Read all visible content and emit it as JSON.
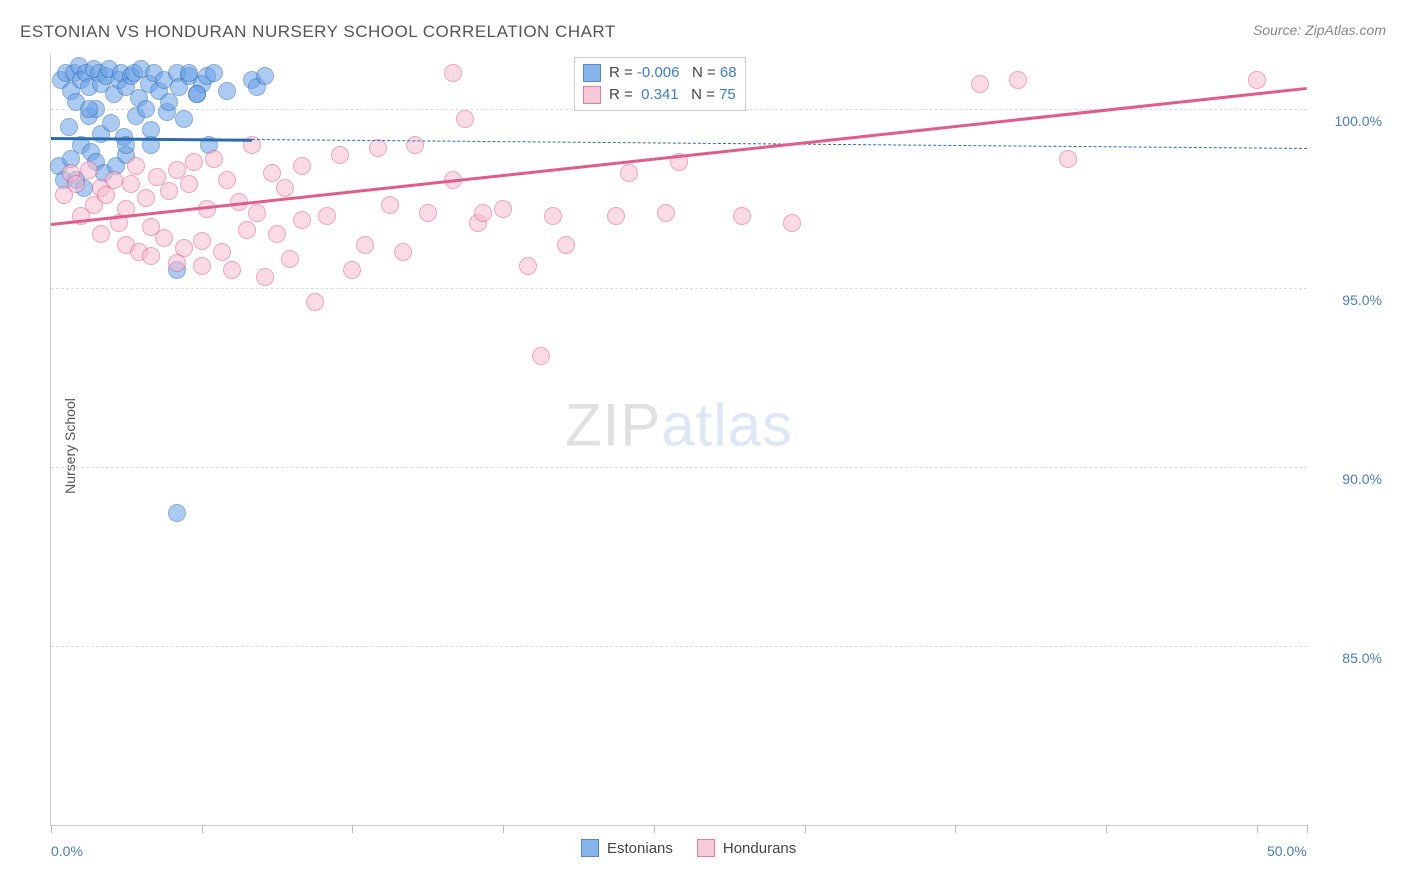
{
  "title": "ESTONIAN VS HONDURAN NURSERY SCHOOL CORRELATION CHART",
  "source": "Source: ZipAtlas.com",
  "ylabel": "Nursery School",
  "watermark": {
    "zip": "ZIP",
    "atlas": "atlas"
  },
  "chart": {
    "type": "scatter",
    "background_color": "#ffffff",
    "grid_color": "#dddddd",
    "axis_color": "#cccccc",
    "label_color": "#4a7ebb",
    "xlim": [
      0,
      50
    ],
    "ylim": [
      80,
      101.5
    ],
    "xticks": [
      0,
      6,
      12,
      18,
      24,
      30,
      36,
      42,
      48,
      50
    ],
    "xtick_labels": {
      "0": "0.0%",
      "50": "50.0%"
    },
    "yticks": [
      85,
      90,
      95,
      100
    ],
    "ytick_labels": {
      "85": "85.0%",
      "90": "90.0%",
      "95": "95.0%",
      "100": "100.0%"
    },
    "point_radius": 9,
    "point_opacity": 0.55,
    "series": [
      {
        "name": "Estonians",
        "fill_color": "#6aa1e8",
        "stroke_color": "#2b6cb0",
        "r": "-0.006",
        "n": "68",
        "trend": {
          "x1": 0,
          "y1": 99.2,
          "x2": 8,
          "y2": 99.15,
          "solid_color": "#2b6cb0",
          "width": 2.5
        },
        "dash_trend": {
          "x1": 8,
          "y1": 99.15,
          "x2": 50,
          "y2": 98.9,
          "dash_color": "#2b6cb0"
        },
        "points": [
          [
            0.3,
            98.4
          ],
          [
            0.4,
            100.8
          ],
          [
            0.5,
            98.0
          ],
          [
            0.6,
            101.0
          ],
          [
            0.7,
            99.5
          ],
          [
            0.8,
            100.5
          ],
          [
            0.8,
            98.6
          ],
          [
            0.9,
            101.0
          ],
          [
            1.0,
            100.2
          ],
          [
            1.0,
            98.0
          ],
          [
            1.1,
            101.2
          ],
          [
            1.2,
            99.0
          ],
          [
            1.2,
            100.8
          ],
          [
            1.3,
            97.8
          ],
          [
            1.4,
            101.0
          ],
          [
            1.5,
            99.8
          ],
          [
            1.5,
            100.6
          ],
          [
            1.6,
            98.8
          ],
          [
            1.7,
            101.1
          ],
          [
            1.8,
            100.0
          ],
          [
            1.8,
            98.5
          ],
          [
            1.9,
            101.0
          ],
          [
            2.0,
            99.3
          ],
          [
            2.0,
            100.7
          ],
          [
            2.1,
            98.2
          ],
          [
            2.2,
            100.9
          ],
          [
            2.3,
            101.1
          ],
          [
            2.4,
            99.6
          ],
          [
            2.5,
            100.4
          ],
          [
            2.6,
            98.4
          ],
          [
            2.7,
            100.8
          ],
          [
            2.8,
            101.0
          ],
          [
            2.9,
            99.2
          ],
          [
            3.0,
            100.6
          ],
          [
            3.0,
            98.7
          ],
          [
            3.2,
            100.9
          ],
          [
            3.3,
            101.0
          ],
          [
            3.4,
            99.8
          ],
          [
            3.5,
            100.3
          ],
          [
            3.6,
            101.1
          ],
          [
            3.8,
            100.0
          ],
          [
            3.9,
            100.7
          ],
          [
            4.0,
            99.4
          ],
          [
            4.1,
            101.0
          ],
          [
            4.3,
            100.5
          ],
          [
            4.5,
            100.8
          ],
          [
            4.6,
            99.9
          ],
          [
            4.7,
            100.2
          ],
          [
            5.0,
            101.0
          ],
          [
            5.1,
            100.6
          ],
          [
            5.3,
            99.7
          ],
          [
            5.5,
            100.9
          ],
          [
            5.5,
            101.0
          ],
          [
            5.8,
            100.4
          ],
          [
            6.0,
            100.7
          ],
          [
            6.2,
            100.9
          ],
          [
            6.3,
            99.0
          ],
          [
            6.5,
            101.0
          ],
          [
            7.0,
            100.5
          ],
          [
            8.0,
            100.8
          ],
          [
            8.2,
            100.6
          ],
          [
            8.5,
            100.9
          ],
          [
            5.0,
            95.5
          ],
          [
            4.0,
            99.0
          ],
          [
            5.0,
            88.7
          ],
          [
            5.8,
            100.4
          ],
          [
            3.0,
            99.0
          ],
          [
            1.5,
            100.0
          ]
        ]
      },
      {
        "name": "Hondurans",
        "fill_color": "#f7bcd0",
        "stroke_color": "#e05c8a",
        "r": "0.341",
        "n": "75",
        "trend": {
          "x1": 0,
          "y1": 96.8,
          "x2": 50,
          "y2": 100.6,
          "solid_color": "#e05c8a",
          "width": 2.5
        },
        "points": [
          [
            0.5,
            97.6
          ],
          [
            0.8,
            98.2
          ],
          [
            1.0,
            97.9
          ],
          [
            1.2,
            97.0
          ],
          [
            1.5,
            98.3
          ],
          [
            1.7,
            97.3
          ],
          [
            2.0,
            97.8
          ],
          [
            2.0,
            96.5
          ],
          [
            2.2,
            97.6
          ],
          [
            2.5,
            98.0
          ],
          [
            2.7,
            96.8
          ],
          [
            3.0,
            97.2
          ],
          [
            3.0,
            96.2
          ],
          [
            3.2,
            97.9
          ],
          [
            3.4,
            98.4
          ],
          [
            3.5,
            96.0
          ],
          [
            3.8,
            97.5
          ],
          [
            4.0,
            96.7
          ],
          [
            4.0,
            95.9
          ],
          [
            4.2,
            98.1
          ],
          [
            4.5,
            96.4
          ],
          [
            4.7,
            97.7
          ],
          [
            5.0,
            98.3
          ],
          [
            5.0,
            95.7
          ],
          [
            5.3,
            96.1
          ],
          [
            5.5,
            97.9
          ],
          [
            5.7,
            98.5
          ],
          [
            6.0,
            96.3
          ],
          [
            6.0,
            95.6
          ],
          [
            6.2,
            97.2
          ],
          [
            6.5,
            98.6
          ],
          [
            6.8,
            96.0
          ],
          [
            7.0,
            98.0
          ],
          [
            7.2,
            95.5
          ],
          [
            7.5,
            97.4
          ],
          [
            7.8,
            96.6
          ],
          [
            8.0,
            99.0
          ],
          [
            8.2,
            97.1
          ],
          [
            8.5,
            95.3
          ],
          [
            8.8,
            98.2
          ],
          [
            9.0,
            96.5
          ],
          [
            9.3,
            97.8
          ],
          [
            9.5,
            95.8
          ],
          [
            10.0,
            98.4
          ],
          [
            10.0,
            96.9
          ],
          [
            10.5,
            94.6
          ],
          [
            11.0,
            97.0
          ],
          [
            11.5,
            98.7
          ],
          [
            12.0,
            95.5
          ],
          [
            12.5,
            96.2
          ],
          [
            13.0,
            98.9
          ],
          [
            13.5,
            97.3
          ],
          [
            14.0,
            96.0
          ],
          [
            14.5,
            99.0
          ],
          [
            15.0,
            97.1
          ],
          [
            16.0,
            101.0
          ],
          [
            16.0,
            98.0
          ],
          [
            16.5,
            99.7
          ],
          [
            17.0,
            96.8
          ],
          [
            17.2,
            97.1
          ],
          [
            18.0,
            97.2
          ],
          [
            19.0,
            95.6
          ],
          [
            19.5,
            93.1
          ],
          [
            20.0,
            97.0
          ],
          [
            20.5,
            96.2
          ],
          [
            22.5,
            97.0
          ],
          [
            23.0,
            98.2
          ],
          [
            24.5,
            97.1
          ],
          [
            25.0,
            98.5
          ],
          [
            27.5,
            97.0
          ],
          [
            29.5,
            96.8
          ],
          [
            37.0,
            100.7
          ],
          [
            38.5,
            100.8
          ],
          [
            40.5,
            98.6
          ],
          [
            48.0,
            100.8
          ]
        ]
      }
    ]
  },
  "stats_box": {
    "r_label": "R = ",
    "n_label": "   N = ",
    "value_color": "#3d7cc9"
  },
  "bottom_legend": {
    "items": [
      "Estonians",
      "Hondurans"
    ]
  }
}
